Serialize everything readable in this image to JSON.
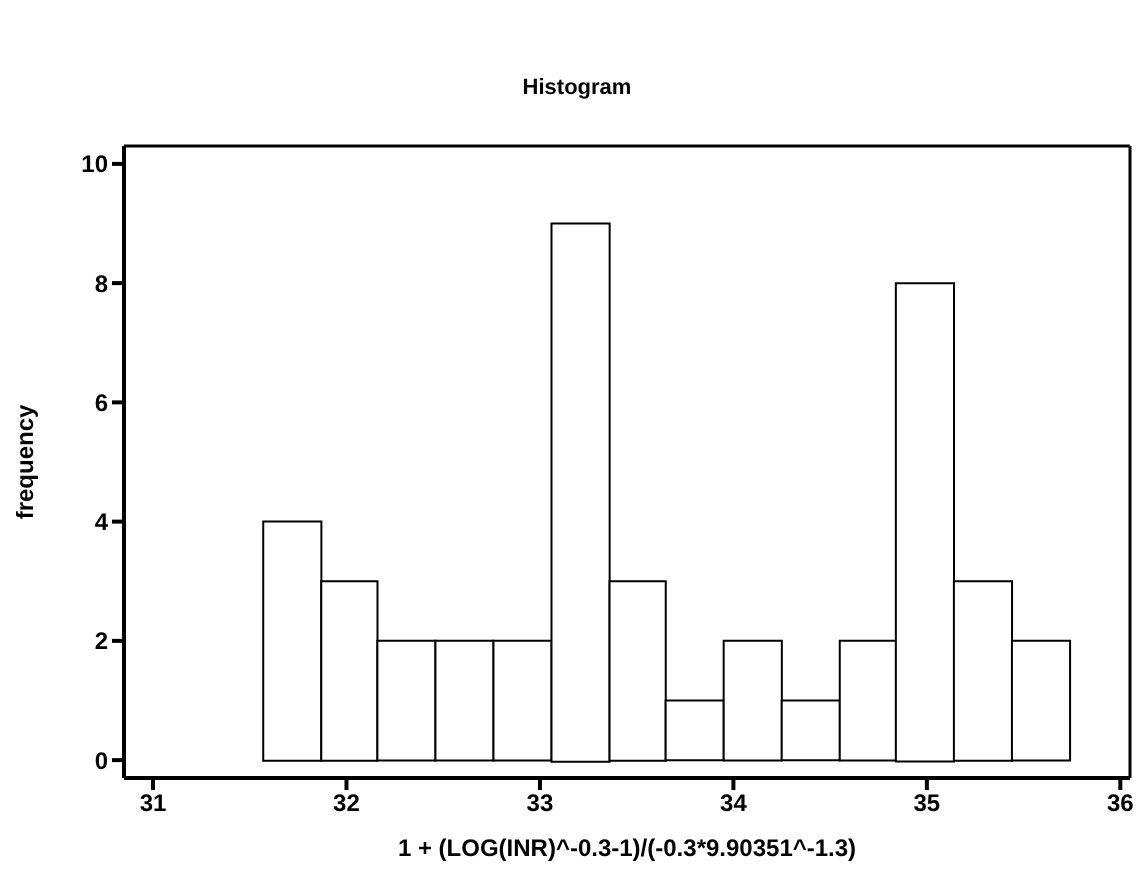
{
  "chart_data": {
    "type": "histogram",
    "title": "Histogram",
    "xlabel": "1 + (LOG(INR)^-0.3-1)/(-0.3*9.90351^-1.3)",
    "ylabel": "frequency",
    "bins": [
      31.57,
      31.87,
      32.16,
      32.46,
      32.76,
      33.06,
      33.36,
      33.65,
      33.95,
      34.25,
      34.55,
      34.84,
      35.14,
      35.44,
      35.74
    ],
    "values": [
      4,
      3,
      2,
      2,
      2,
      9,
      3,
      1,
      2,
      1,
      2,
      8,
      3,
      2
    ],
    "color": "#ffffff",
    "xlim": [
      30.85,
      36.05
    ],
    "xticks": [
      31,
      32,
      33,
      34,
      35,
      36
    ],
    "ylim": [
      -0.3,
      10.3
    ],
    "yticks": [
      0,
      2,
      4,
      6,
      8,
      10
    ],
    "legend": false
  }
}
